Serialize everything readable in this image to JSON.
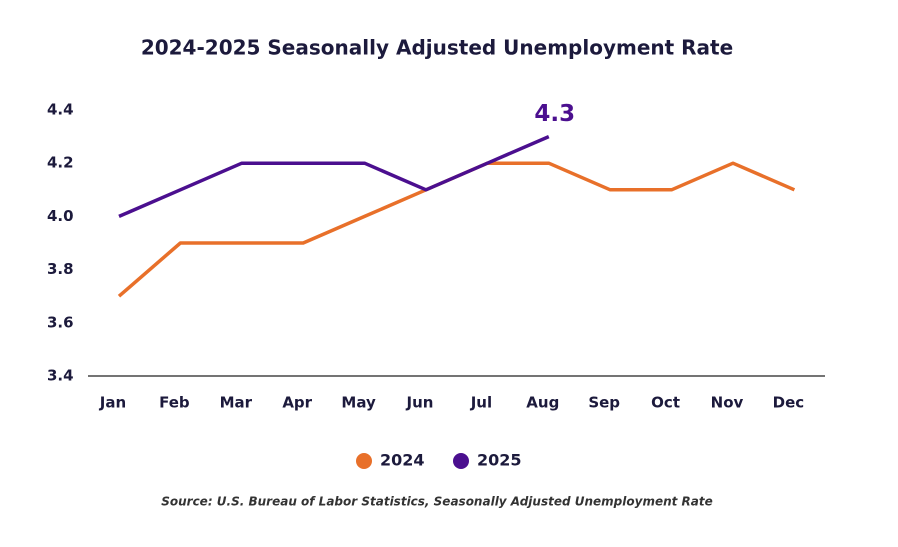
{
  "chart_data": {
    "type": "line",
    "title": "2024-2025 Seasonally Adjusted Unemployment Rate",
    "categories": [
      "Jan",
      "Feb",
      "Mar",
      "Apr",
      "May",
      "Jun",
      "Jul",
      "Aug",
      "Sep",
      "Oct",
      "Nov",
      "Dec"
    ],
    "series": [
      {
        "name": "2024",
        "color": "#e8702a",
        "values": [
          3.7,
          3.9,
          3.9,
          3.9,
          4.0,
          4.1,
          4.2,
          4.2,
          4.1,
          4.1,
          4.2,
          4.1
        ]
      },
      {
        "name": "2025",
        "color": "#4b0f8f",
        "values": [
          4.0,
          4.1,
          4.2,
          4.2,
          4.2,
          4.1,
          4.2,
          4.3,
          null,
          null,
          null,
          null
        ]
      }
    ],
    "ylim": [
      3.4,
      4.4
    ],
    "yticks": [
      3.4,
      3.6,
      3.8,
      {
        "value": 4,
        "label": "4.0"
      },
      4.2,
      4.4
    ],
    "grid": false,
    "legend": "bottom",
    "source": "Source: U.S. Bureau of Labor Statistics, Seasonally Adjusted Unemployment Rate"
  }
}
